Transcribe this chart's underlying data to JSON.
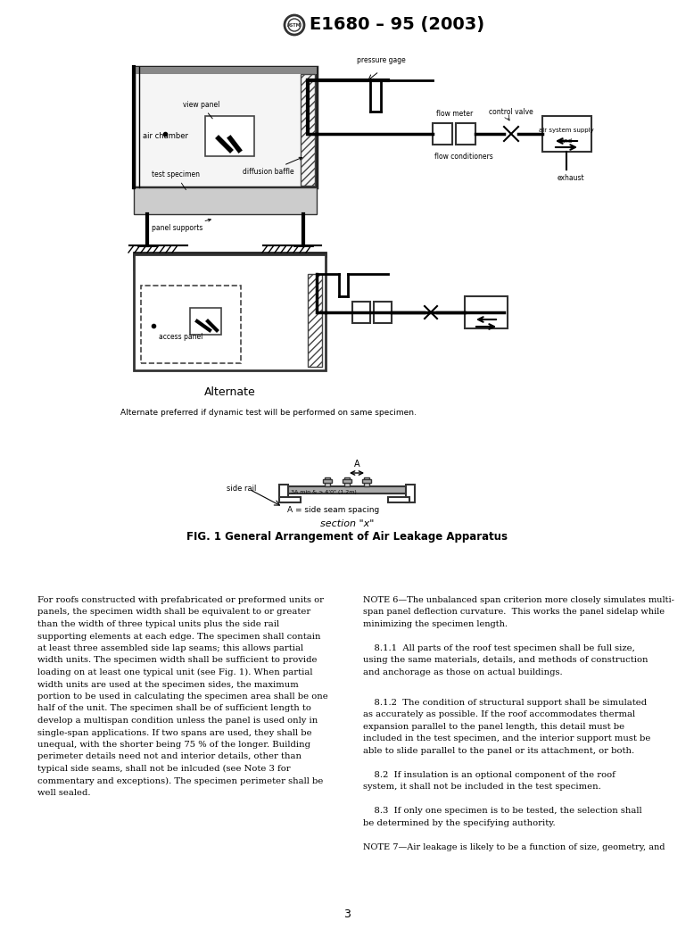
{
  "title": "E1680 – 95 (2003)",
  "bg_color": "#ffffff",
  "fig_caption": "FIG. 1 General Arrangement of Air Leakage Apparatus",
  "alt_label": "Alternate",
  "alt_note": "Alternate preferred if dynamic test will be performed on same specimen.",
  "section_label": "section \"x\"",
  "page_number": "3",
  "left_col_text": [
    "For roofs constructed with prefabricated or preformed units or",
    "panels, the specimen width shall be equivalent to or greater",
    "than the width of three typical units plus the side rail",
    "supporting elements at each edge. The specimen shall contain",
    "at least three assembled side lap seams; this allows partial",
    "width units. The specimen width shall be sufficient to provide",
    "loading on at least one typical unit (see Fig. 1). When partial",
    "width units are used at the specimen sides, the maximum",
    "portion to be used in calculating the specimen area shall be one",
    "half of the unit. The specimen shall be of sufficient length to",
    "develop a multispan condition unless the panel is used only in",
    "single-span applications. If two spans are used, they shall be",
    "unequal, with the shorter being 75 % of the longer. Building",
    "perimeter details need not and interior details, other than",
    "typical side seams, shall not be inlcuded (see Note 3 for",
    "commentary and exceptions). The specimen perimeter shall be",
    "well sealed."
  ],
  "note6_lines": [
    "NOTE 6—The unbalanced span criterion more closely simulates multi-",
    "span panel deflection curvature.  This works the panel sidelap while",
    "minimizing the specimen length."
  ],
  "lines_811": [
    "    8.1.1  All parts of the roof test specimen shall be full size,",
    "using the same materials, details, and methods of construction",
    "and anchorage as those on actual buildings."
  ],
  "lines_812": [
    "    8.1.2  The condition of structural support shall be simulated",
    "as accurately as possible. If the roof accommodates thermal",
    "expansion parallel to the panel length, this detail must be",
    "included in the test specimen, and the interior support must be",
    "able to slide parallel to the panel or its attachment, or both."
  ],
  "lines_82": [
    "    8.2  If insulation is an optional component of the roof",
    "system, it shall not be included in the test specimen."
  ],
  "lines_83": [
    "    8.3  If only one specimen is to be tested, the selection shall",
    "be determined by the specifying authority."
  ],
  "lines_note7": [
    "NOTE 7—Air leakage is likely to be a function of size, geometry, and"
  ]
}
